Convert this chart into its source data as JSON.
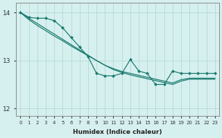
{
  "xlabel": "Humidex (Indice chaleur)",
  "background_color": "#d6f0ef",
  "grid_color": "#b8dcd8",
  "line_color": "#1a7a6e",
  "x_values": [
    0,
    1,
    2,
    3,
    4,
    5,
    6,
    7,
    8,
    9,
    10,
    11,
    12,
    13,
    14,
    15,
    16,
    17,
    18,
    19,
    20,
    21,
    22,
    23
  ],
  "line2": [
    14.0,
    13.88,
    13.77,
    13.66,
    13.55,
    13.44,
    13.33,
    13.22,
    13.11,
    13.0,
    12.9,
    12.83,
    12.77,
    12.73,
    12.69,
    12.65,
    12.61,
    12.57,
    12.53,
    12.6,
    12.63,
    12.63,
    12.63,
    12.63
  ],
  "line3": [
    14.0,
    13.85,
    13.73,
    13.62,
    13.51,
    13.41,
    13.3,
    13.2,
    13.1,
    13.0,
    12.9,
    12.81,
    12.75,
    12.7,
    12.66,
    12.62,
    12.58,
    12.54,
    12.5,
    12.57,
    12.61,
    12.61,
    12.61,
    12.61
  ],
  "line4_x": [
    0,
    1,
    2,
    3,
    4,
    5,
    6,
    7,
    8,
    9,
    10,
    11,
    12,
    13,
    14,
    15,
    16,
    17,
    18,
    19,
    20,
    21,
    22,
    23
  ],
  "line4": [
    14.0,
    13.9,
    13.88,
    13.88,
    13.83,
    13.68,
    13.48,
    13.28,
    13.08,
    12.73,
    12.68,
    12.68,
    12.73,
    13.02,
    12.78,
    12.73,
    12.5,
    12.5,
    12.78,
    12.73,
    12.73,
    12.73,
    12.73,
    12.73
  ],
  "ylim": [
    11.85,
    14.2
  ],
  "xlim": [
    -0.5,
    23.5
  ],
  "yticks": [
    12,
    13,
    14
  ],
  "xticks": [
    0,
    1,
    2,
    3,
    4,
    5,
    6,
    7,
    8,
    9,
    10,
    11,
    12,
    13,
    14,
    15,
    16,
    17,
    18,
    19,
    20,
    21,
    22,
    23
  ]
}
